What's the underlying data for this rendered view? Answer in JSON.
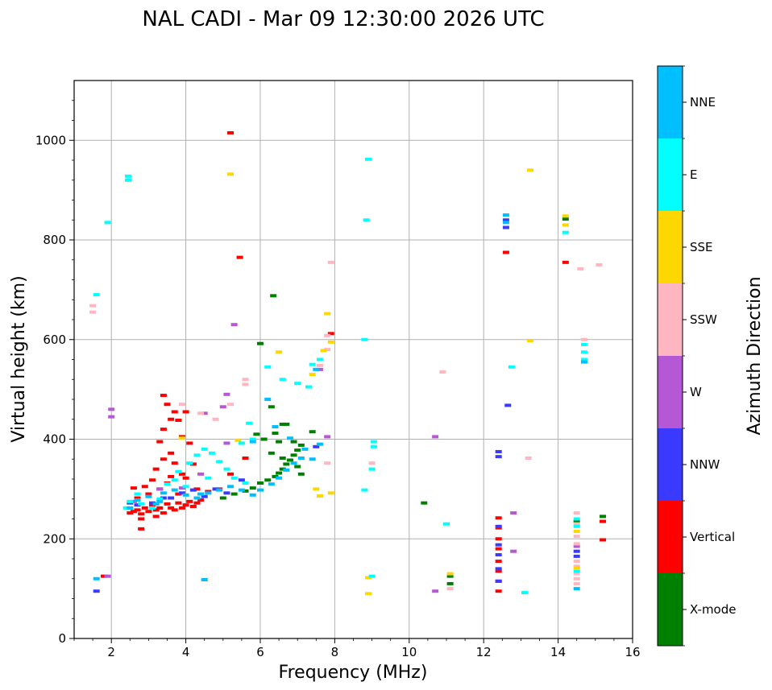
{
  "chart_data": {
    "type": "scatter",
    "title": "NAL CADI - Mar 09 12:30:00 2026 UTC",
    "xlabel": "Frequency (MHz)",
    "ylabel": "Virtual height (km)",
    "xlim": [
      1,
      16
    ],
    "ylim": [
      0,
      1120
    ],
    "xticks": [
      2,
      4,
      6,
      8,
      10,
      12,
      14,
      16
    ],
    "yticks": [
      0,
      200,
      400,
      600,
      800,
      1000
    ],
    "grid": true,
    "colorbar": {
      "title": "Azimuth Direction",
      "position": "right",
      "categories": [
        {
          "label": "X-mode",
          "color": "#008000"
        },
        {
          "label": "Vertical",
          "color": "#ff0000"
        },
        {
          "label": "NNW",
          "color": "#3a3aff"
        },
        {
          "label": "W",
          "color": "#b658d6"
        },
        {
          "label": "SSW",
          "color": "#ffb6c1"
        },
        {
          "label": "SSE",
          "color": "#ffd700"
        },
        {
          "label": "E",
          "color": "#00ffff"
        },
        {
          "label": "NNE",
          "color": "#00bfff"
        }
      ]
    },
    "series": [
      {
        "name": "Vertical",
        "color": "#ff0000",
        "points": [
          [
            2.5,
            252
          ],
          [
            2.6,
            255
          ],
          [
            2.7,
            258
          ],
          [
            2.8,
            250
          ],
          [
            2.9,
            262
          ],
          [
            3.0,
            255
          ],
          [
            3.1,
            268
          ],
          [
            3.2,
            258
          ],
          [
            3.3,
            262
          ],
          [
            3.4,
            252
          ],
          [
            3.5,
            270
          ],
          [
            3.6,
            262
          ],
          [
            3.7,
            258
          ],
          [
            3.8,
            272
          ],
          [
            3.9,
            262
          ],
          [
            4.0,
            268
          ],
          [
            4.1,
            275
          ],
          [
            4.2,
            265
          ],
          [
            4.3,
            272
          ],
          [
            4.4,
            278
          ],
          [
            2.7,
            282
          ],
          [
            3.0,
            290
          ],
          [
            3.3,
            300
          ],
          [
            3.5,
            312
          ],
          [
            3.2,
            340
          ],
          [
            3.4,
            360
          ],
          [
            3.6,
            372
          ],
          [
            3.3,
            395
          ],
          [
            3.4,
            420
          ],
          [
            3.6,
            440
          ],
          [
            3.5,
            470
          ],
          [
            3.4,
            488
          ],
          [
            3.7,
            455
          ],
          [
            3.8,
            438
          ],
          [
            3.9,
            405
          ],
          [
            4.1,
            392
          ],
          [
            3.7,
            352
          ],
          [
            3.9,
            330
          ],
          [
            4.0,
            322
          ],
          [
            4.2,
            350
          ],
          [
            4.3,
            300
          ],
          [
            3.8,
            290
          ],
          [
            4.6,
            295
          ],
          [
            4.9,
            300
          ],
          [
            5.2,
            330
          ],
          [
            5.6,
            362
          ],
          [
            3.1,
            318
          ],
          [
            2.9,
            305
          ],
          [
            3.6,
            325
          ],
          [
            4.0,
            455
          ],
          [
            2.6,
            302
          ],
          [
            2.8,
            240
          ],
          [
            2.8,
            220
          ],
          [
            3.2,
            245
          ],
          [
            5.2,
            1015
          ],
          [
            5.45,
            765
          ],
          [
            7.9,
            612
          ],
          [
            12.4,
            95
          ],
          [
            12.4,
            115
          ],
          [
            12.4,
            135
          ],
          [
            12.4,
            155
          ],
          [
            12.4,
            180
          ],
          [
            12.4,
            200
          ],
          [
            12.4,
            222
          ],
          [
            12.4,
            242
          ],
          [
            12.6,
            775
          ],
          [
            14.2,
            755
          ],
          [
            15.2,
            235
          ],
          [
            15.2,
            198
          ],
          [
            1.8,
            125
          ]
        ]
      },
      {
        "name": "X-mode",
        "color": "#008000",
        "points": [
          [
            5.0,
            282
          ],
          [
            5.3,
            290
          ],
          [
            5.6,
            296
          ],
          [
            5.8,
            302
          ],
          [
            6.0,
            312
          ],
          [
            6.2,
            318
          ],
          [
            6.4,
            325
          ],
          [
            6.5,
            332
          ],
          [
            6.6,
            340
          ],
          [
            6.7,
            350
          ],
          [
            6.8,
            358
          ],
          [
            6.9,
            368
          ],
          [
            7.0,
            378
          ],
          [
            7.1,
            388
          ],
          [
            6.3,
            372
          ],
          [
            6.5,
            395
          ],
          [
            6.4,
            412
          ],
          [
            6.7,
            430
          ],
          [
            7.0,
            345
          ],
          [
            7.1,
            330
          ],
          [
            6.6,
            362
          ],
          [
            6.9,
            395
          ],
          [
            6.1,
            400
          ],
          [
            6.3,
            465
          ],
          [
            6.6,
            430
          ],
          [
            7.4,
            415
          ],
          [
            6.0,
            592
          ],
          [
            6.35,
            688
          ],
          [
            10.4,
            272
          ],
          [
            11.1,
            110
          ],
          [
            11.1,
            125
          ],
          [
            14.2,
            842
          ],
          [
            14.5,
            235
          ],
          [
            15.2,
            245
          ],
          [
            5.9,
            410
          ]
        ]
      },
      {
        "name": "NNW",
        "color": "#3a3aff",
        "points": [
          [
            2.7,
            268
          ],
          [
            3.1,
            272
          ],
          [
            3.6,
            282
          ],
          [
            3.9,
            292
          ],
          [
            4.2,
            298
          ],
          [
            4.5,
            285
          ],
          [
            4.8,
            300
          ],
          [
            5.1,
            292
          ],
          [
            5.5,
            318
          ],
          [
            7.5,
            385
          ],
          [
            12.4,
            375
          ],
          [
            12.4,
            365
          ],
          [
            12.4,
            225
          ],
          [
            12.4,
            188
          ],
          [
            12.4,
            168
          ],
          [
            12.4,
            140
          ],
          [
            12.4,
            115
          ],
          [
            12.65,
            468
          ],
          [
            12.6,
            840
          ],
          [
            12.6,
            825
          ],
          [
            14.5,
            175
          ],
          [
            14.5,
            165
          ],
          [
            1.6,
            95
          ],
          [
            2.5,
            272
          ],
          [
            3.4,
            282
          ]
        ]
      },
      {
        "name": "W",
        "color": "#b658d6",
        "points": [
          [
            2.0,
            460
          ],
          [
            2.0,
            445
          ],
          [
            5.0,
            465
          ],
          [
            5.1,
            490
          ],
          [
            5.3,
            630
          ],
          [
            5.1,
            392
          ],
          [
            4.4,
            330
          ],
          [
            3.3,
            300
          ],
          [
            7.8,
            405
          ],
          [
            10.7,
            405
          ],
          [
            10.7,
            95
          ],
          [
            12.8,
            252
          ],
          [
            12.8,
            175
          ],
          [
            14.5,
            185
          ],
          [
            1.9,
            125
          ],
          [
            2.6,
            275
          ],
          [
            3.9,
            302
          ],
          [
            4.5,
            452
          ],
          [
            7.6,
            540
          ]
        ]
      },
      {
        "name": "SSW",
        "color": "#ffb6c1",
        "points": [
          [
            4.4,
            452
          ],
          [
            4.8,
            440
          ],
          [
            5.2,
            470
          ],
          [
            5.6,
            510
          ],
          [
            7.9,
            755
          ],
          [
            7.8,
            608
          ],
          [
            7.8,
            580
          ],
          [
            7.6,
            548
          ],
          [
            9.0,
            352
          ],
          [
            10.9,
            535
          ],
          [
            11.1,
            100
          ],
          [
            13.2,
            362
          ],
          [
            14.6,
            742
          ],
          [
            15.1,
            750
          ],
          [
            14.7,
            600
          ],
          [
            14.5,
            252
          ],
          [
            14.5,
            230
          ],
          [
            14.5,
            205
          ],
          [
            14.5,
            190
          ],
          [
            14.5,
            155
          ],
          [
            14.5,
            145
          ],
          [
            14.5,
            130
          ],
          [
            14.5,
            120
          ],
          [
            14.5,
            110
          ],
          [
            1.5,
            668
          ],
          [
            1.5,
            655
          ],
          [
            3.9,
            470
          ],
          [
            5.6,
            520
          ],
          [
            7.8,
            352
          ]
        ]
      },
      {
        "name": "SSE",
        "color": "#ffd700",
        "points": [
          [
            6.5,
            575
          ],
          [
            7.4,
            530
          ],
          [
            7.7,
            578
          ],
          [
            7.8,
            652
          ],
          [
            7.9,
            595
          ],
          [
            7.9,
            292
          ],
          [
            7.5,
            300
          ],
          [
            7.6,
            286
          ],
          [
            8.9,
            122
          ],
          [
            8.9,
            90
          ],
          [
            11.1,
            130
          ],
          [
            13.25,
            940
          ],
          [
            13.25,
            598
          ],
          [
            14.2,
            848
          ],
          [
            14.2,
            830
          ],
          [
            14.5,
            215
          ],
          [
            14.5,
            142
          ],
          [
            5.2,
            932
          ],
          [
            5.4,
            398
          ],
          [
            3.9,
            402
          ]
        ]
      },
      {
        "name": "E",
        "color": "#00ffff",
        "points": [
          [
            2.5,
            275
          ],
          [
            2.8,
            270
          ],
          [
            3.1,
            262
          ],
          [
            3.3,
            280
          ],
          [
            3.5,
            310
          ],
          [
            3.8,
            335
          ],
          [
            4.1,
            352
          ],
          [
            4.3,
            368
          ],
          [
            4.5,
            380
          ],
          [
            4.7,
            372
          ],
          [
            4.9,
            355
          ],
          [
            5.1,
            340
          ],
          [
            5.3,
            322
          ],
          [
            5.6,
            312
          ],
          [
            5.8,
            400
          ],
          [
            6.2,
            545
          ],
          [
            6.6,
            520
          ],
          [
            7.0,
            512
          ],
          [
            7.3,
            505
          ],
          [
            7.4,
            550
          ],
          [
            7.6,
            560
          ],
          [
            8.8,
            298
          ],
          [
            9.05,
            395
          ],
          [
            9.05,
            385
          ],
          [
            9.0,
            340
          ],
          [
            11.0,
            230
          ],
          [
            12.75,
            545
          ],
          [
            13.1,
            92
          ],
          [
            14.2,
            815
          ],
          [
            14.7,
            590
          ],
          [
            14.7,
            575
          ],
          [
            14.7,
            560
          ],
          [
            14.5,
            240
          ],
          [
            14.5,
            225
          ],
          [
            14.5,
            135
          ],
          [
            1.6,
            690
          ],
          [
            1.9,
            835
          ],
          [
            2.45,
            928
          ],
          [
            2.45,
            920
          ],
          [
            8.85,
            840
          ],
          [
            8.9,
            962
          ],
          [
            8.8,
            600
          ],
          [
            9.0,
            125
          ],
          [
            4.0,
            305
          ],
          [
            3.7,
            318
          ],
          [
            4.6,
            322
          ],
          [
            5.5,
            392
          ],
          [
            5.7,
            432
          ],
          [
            2.4,
            262
          ],
          [
            2.7,
            290
          ]
        ]
      },
      {
        "name": "NNE",
        "color": "#00bfff",
        "points": [
          [
            2.5,
            262
          ],
          [
            2.7,
            278
          ],
          [
            3.0,
            285
          ],
          [
            3.2,
            270
          ],
          [
            3.4,
            292
          ],
          [
            3.7,
            298
          ],
          [
            4.0,
            288
          ],
          [
            4.3,
            282
          ],
          [
            4.6,
            292
          ],
          [
            4.9,
            298
          ],
          [
            5.2,
            305
          ],
          [
            5.5,
            298
          ],
          [
            5.8,
            288
          ],
          [
            6.0,
            298
          ],
          [
            6.3,
            310
          ],
          [
            6.5,
            322
          ],
          [
            6.7,
            338
          ],
          [
            6.9,
            352
          ],
          [
            7.1,
            362
          ],
          [
            6.4,
            425
          ],
          [
            6.8,
            402
          ],
          [
            7.2,
            380
          ],
          [
            7.4,
            360
          ],
          [
            7.5,
            540
          ],
          [
            6.2,
            480
          ],
          [
            7.6,
            390
          ],
          [
            12.6,
            850
          ],
          [
            12.6,
            835
          ],
          [
            14.7,
            555
          ],
          [
            14.5,
            100
          ],
          [
            1.6,
            120
          ],
          [
            4.5,
            118
          ],
          [
            5.8,
            395
          ],
          [
            3.3,
            275
          ],
          [
            4.4,
            290
          ]
        ]
      }
    ]
  }
}
